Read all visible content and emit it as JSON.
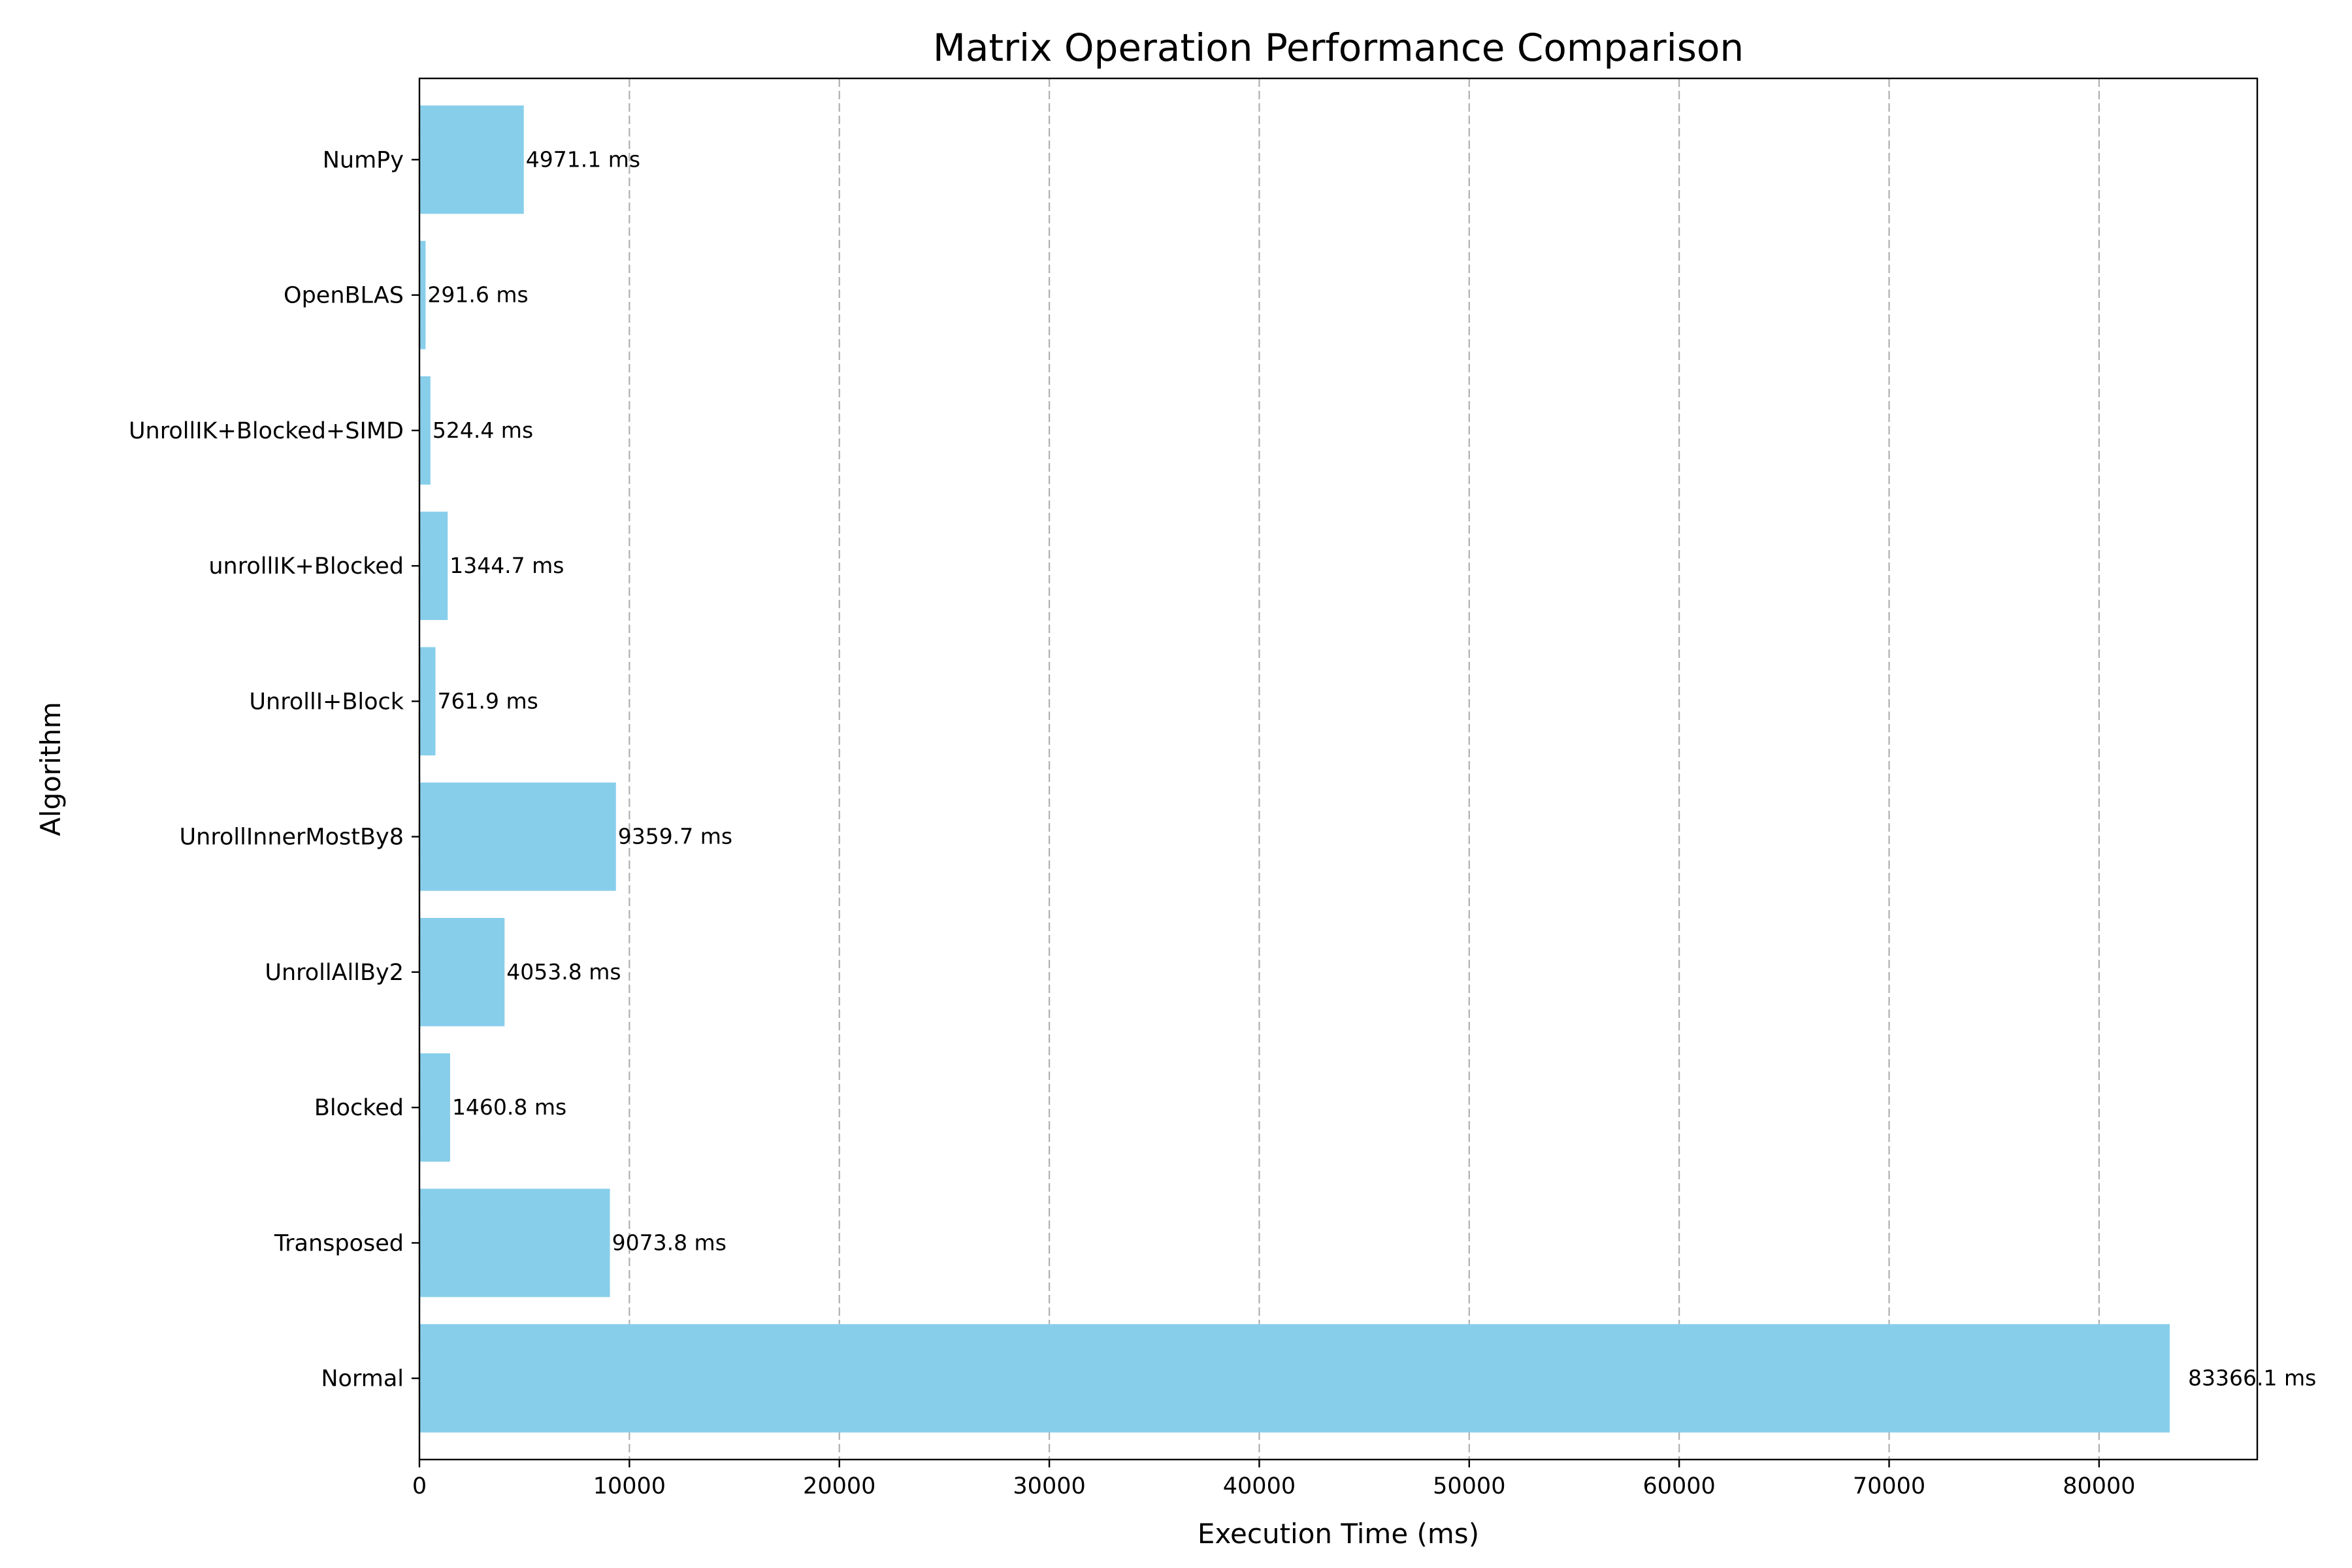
{
  "chart_data": {
    "type": "bar",
    "orientation": "horizontal",
    "title": "Matrix Operation Performance Comparison",
    "xlabel": "Execution Time (ms)",
    "ylabel": "Algorithm",
    "categories": [
      "Normal",
      "Transposed",
      "Blocked",
      "UnrollAllBy2",
      "UnrollInnerMostBy8",
      "UnrollI+Block",
      "unrollIK+Blocked",
      "UnrollIK+Blocked+SIMD",
      "OpenBLAS",
      "NumPy"
    ],
    "values": [
      83366.1,
      9073.8,
      1460.8,
      4053.8,
      9359.7,
      761.9,
      1344.7,
      524.4,
      291.6,
      4971.1
    ],
    "data_labels": [
      "83366.1 ms",
      "9073.8 ms",
      "1460.8 ms",
      "4053.8 ms",
      "9359.7 ms",
      "761.9 ms",
      "1344.7 ms",
      "524.4 ms",
      "291.6 ms",
      "4971.1 ms"
    ],
    "xlim": [
      0,
      87534.4
    ],
    "xticks": [
      0,
      10000,
      20000,
      30000,
      40000,
      50000,
      60000,
      70000,
      80000
    ],
    "xtick_labels": [
      "0",
      "10000",
      "20000",
      "30000",
      "40000",
      "50000",
      "60000",
      "70000",
      "80000"
    ],
    "grid": {
      "x": true,
      "y": false,
      "style": "dashed"
    },
    "bar_color": "#87CEEB",
    "grid_color": "#b0b0b0"
  }
}
